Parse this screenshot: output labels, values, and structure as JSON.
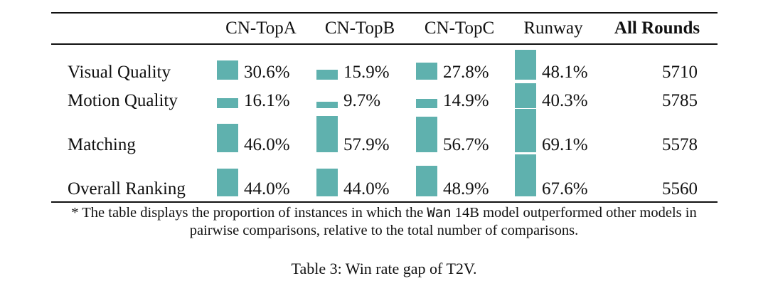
{
  "table": {
    "columns": [
      "CN-TopA",
      "CN-TopB",
      "CN-TopC",
      "Runway"
    ],
    "total_header": "All Rounds",
    "rows": [
      {
        "label": "Visual Quality",
        "values": [
          "30.6%",
          "15.9%",
          "27.8%",
          "48.1%"
        ],
        "rates": [
          30.6,
          15.9,
          27.8,
          48.1
        ],
        "total": "5710"
      },
      {
        "label": "Motion Quality",
        "values": [
          "16.1%",
          "9.7%",
          "14.9%",
          "40.3%"
        ],
        "rates": [
          16.1,
          9.7,
          14.9,
          40.3
        ],
        "total": "5785"
      },
      {
        "label": "Matching",
        "values": [
          "46.0%",
          "57.9%",
          "56.7%",
          "69.1%"
        ],
        "rates": [
          46.0,
          57.9,
          56.7,
          69.1
        ],
        "total": "5578"
      },
      {
        "label": "Overall Ranking",
        "values": [
          "44.0%",
          "44.0%",
          "48.9%",
          "67.6%"
        ],
        "rates": [
          44.0,
          44.0,
          48.9,
          67.6
        ],
        "total": "5560"
      }
    ],
    "bar_color": "#5fb1ae"
  },
  "note": {
    "before": "* The table displays the proportion of instances in which the ",
    "model_code": "Wan",
    "after_line1": " 14B model outperformed other models in",
    "line2": "pairwise comparisons, relative to the total number of comparisons."
  },
  "caption": "Table 3: Win rate gap of T2V."
}
